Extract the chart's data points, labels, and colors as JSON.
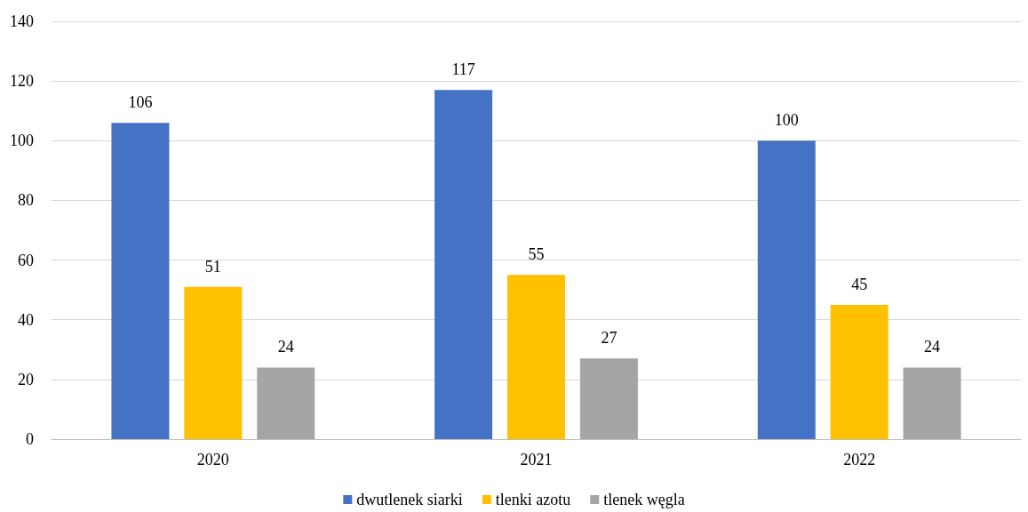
{
  "chart_data": {
    "type": "bar",
    "categories": [
      "2020",
      "2021",
      "2022"
    ],
    "series": [
      {
        "name": "dwutlenek siarki",
        "color": "#4472c4",
        "values": [
          106,
          117,
          100
        ]
      },
      {
        "name": "tlenki azotu",
        "color": "#ffc000",
        "values": [
          51,
          55,
          45
        ]
      },
      {
        "name": "tlenek węgla",
        "color": "#a5a5a5",
        "values": [
          24,
          27,
          24
        ]
      }
    ],
    "ylim": [
      0,
      140
    ],
    "yticks": [
      0,
      20,
      40,
      60,
      80,
      100,
      120,
      140
    ],
    "grid": "y",
    "legend": "bottom",
    "data_labels": true
  }
}
